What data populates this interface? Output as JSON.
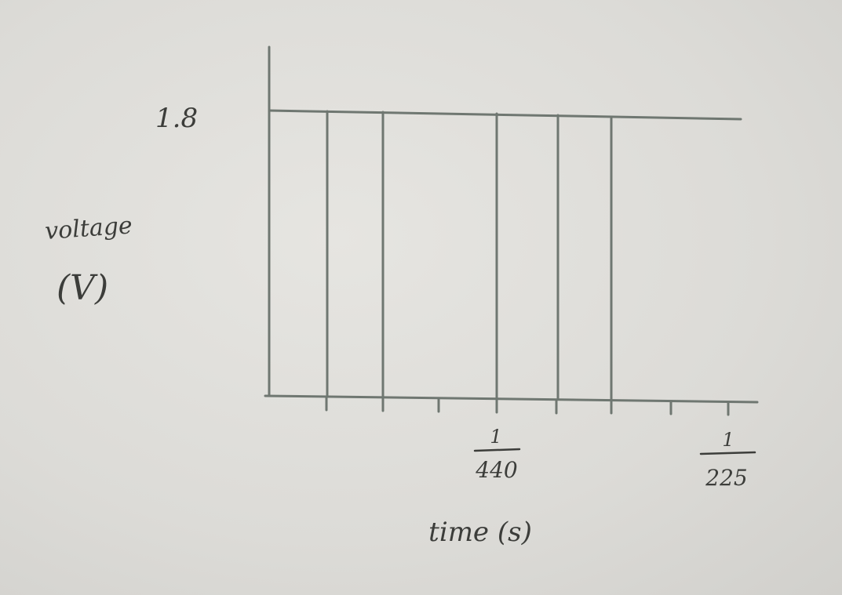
{
  "chart_data": {
    "type": "line",
    "title": "",
    "ylabel_line1": "voltage",
    "ylabel_line2": "(V)",
    "xlabel": "time (s)",
    "y_tick_label": "1.8",
    "x_tick_labels": [
      {
        "numerator": "1",
        "denominator": "440"
      },
      {
        "numerator": "1",
        "denominator": "225"
      }
    ],
    "series": [
      {
        "level": 1.8,
        "pulse_count": 5
      }
    ],
    "x_ticks_total": 8,
    "grid": false,
    "colors": {
      "ink": "#6f7771",
      "paper": "#e1e0dc"
    }
  }
}
